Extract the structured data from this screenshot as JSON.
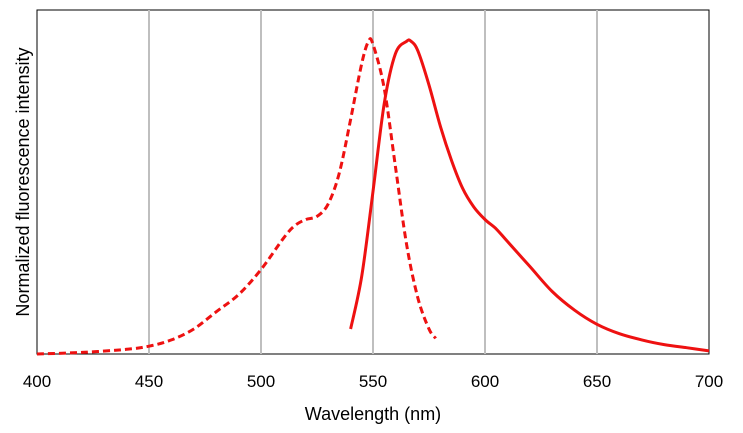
{
  "chart_data": {
    "type": "line",
    "title": "",
    "xlabel": "Wavelength (nm)",
    "ylabel": "Normalized fluorescence intensity",
    "xlim": [
      400,
      700
    ],
    "ylim": [
      0,
      1.1
    ],
    "x_ticks": [
      400,
      450,
      500,
      550,
      600,
      650,
      700
    ],
    "x_tick_labels": [
      "400",
      "450",
      "500",
      "550",
      "600",
      "650",
      "700"
    ],
    "y_ticks_shown": false,
    "grid": "vertical",
    "legend": "none",
    "series": [
      {
        "style": "dashed",
        "color": "#ee1111",
        "x": [
          400,
          420,
          440,
          450,
          460,
          470,
          480,
          490,
          500,
          510,
          515,
          520,
          525,
          530,
          535,
          540,
          545,
          548,
          550,
          555,
          560,
          565,
          570,
          575,
          578
        ],
        "y": [
          0.0,
          0.005,
          0.015,
          0.025,
          0.045,
          0.08,
          0.135,
          0.19,
          0.27,
          0.37,
          0.41,
          0.43,
          0.44,
          0.48,
          0.58,
          0.75,
          0.93,
          1.0,
          0.99,
          0.85,
          0.6,
          0.35,
          0.18,
          0.08,
          0.05
        ]
      },
      {
        "style": "solid",
        "color": "#ee1111",
        "x": [
          540,
          545,
          550,
          555,
          560,
          565,
          567,
          570,
          575,
          580,
          585,
          590,
          595,
          600,
          605,
          610,
          620,
          630,
          640,
          650,
          660,
          670,
          680,
          690,
          700
        ],
        "y": [
          0.08,
          0.25,
          0.52,
          0.8,
          0.96,
          1.0,
          1.0,
          0.97,
          0.86,
          0.73,
          0.62,
          0.53,
          0.47,
          0.43,
          0.4,
          0.36,
          0.28,
          0.2,
          0.14,
          0.095,
          0.065,
          0.045,
          0.03,
          0.02,
          0.01
        ]
      }
    ]
  }
}
